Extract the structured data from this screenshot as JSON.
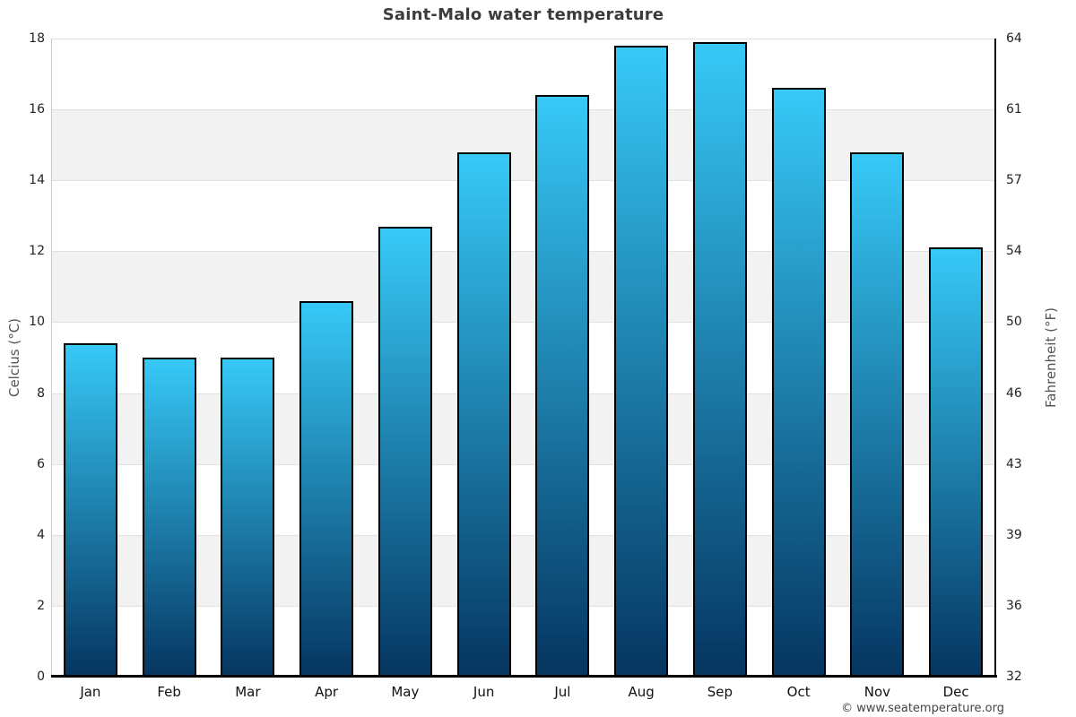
{
  "title": "Saint-Malo water temperature",
  "watermark": "© www.seatemperature.org",
  "chart_data": {
    "type": "bar",
    "title": "Saint-Malo water temperature",
    "categories": [
      "Jan",
      "Feb",
      "Mar",
      "Apr",
      "May",
      "Jun",
      "Jul",
      "Aug",
      "Sep",
      "Oct",
      "Nov",
      "Dec"
    ],
    "values": [
      9.4,
      9.0,
      9.0,
      10.6,
      12.7,
      14.8,
      16.4,
      17.8,
      17.9,
      16.6,
      14.8,
      12.1
    ],
    "unit": "°C",
    "xlabel": "",
    "ylabel_left": "Celcius (°C)",
    "ylabel_right": "Fahrenheit (°F)",
    "ylim": [
      0,
      18
    ],
    "left_ticks": [
      18,
      16,
      14,
      12,
      10,
      8,
      6,
      4,
      2,
      0
    ],
    "right_ticks": [
      "64",
      "61",
      "57",
      "54",
      "50",
      "46",
      "43",
      "39",
      "36",
      "32"
    ],
    "gray_bands": [
      [
        2,
        4
      ],
      [
        6,
        8
      ],
      [
        10,
        12
      ],
      [
        14,
        16
      ]
    ],
    "grid": "horizontal",
    "legend": "none",
    "style": {
      "bar_top_color": "#37c9f7",
      "bar_bottom_color": "#053560",
      "bar_border_color": "#000000",
      "band_color": "#f2f2f2",
      "grid_color": "#e1e1e1",
      "title_color": "#3c3c3c",
      "tick_color": "#222222",
      "axis_title_color": "#555555",
      "watermark_color": "#444444"
    }
  }
}
